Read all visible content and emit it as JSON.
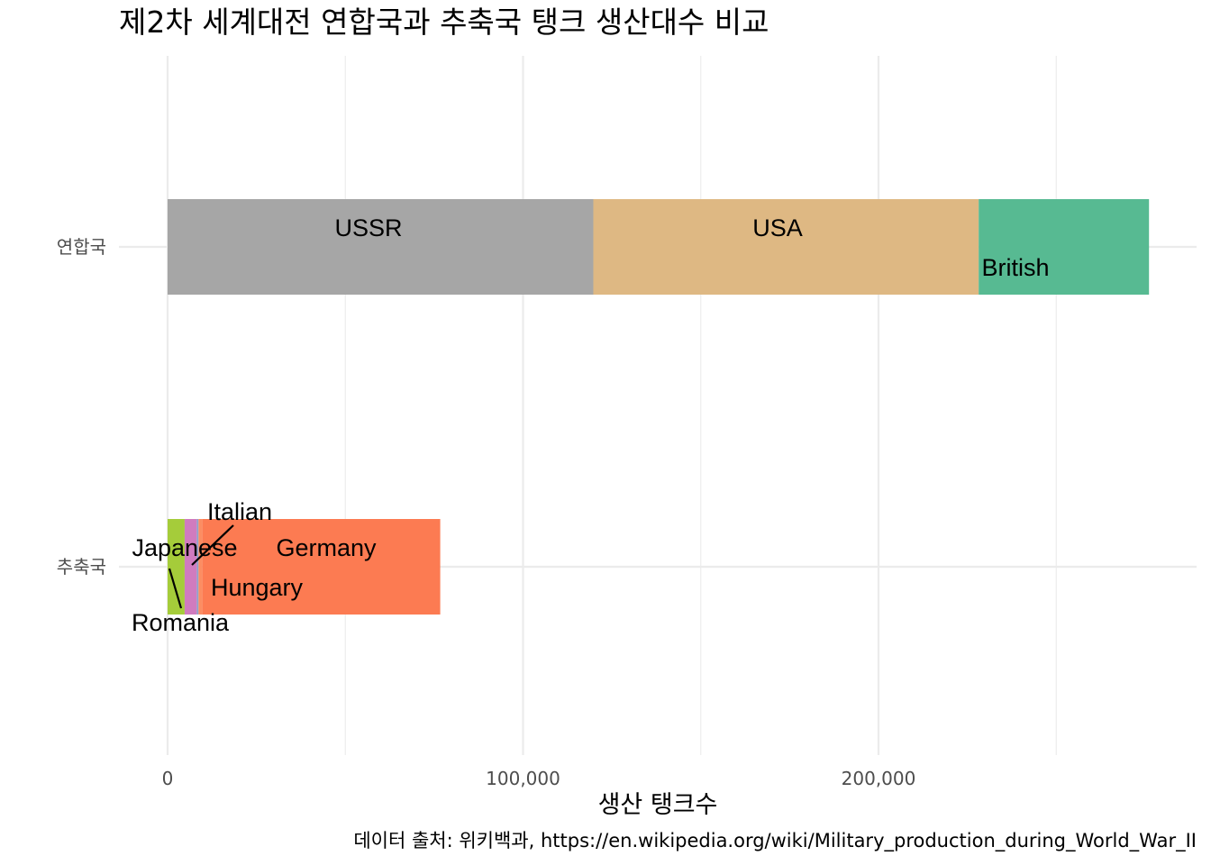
{
  "chart_data": {
    "type": "bar",
    "orientation": "horizontal",
    "stacked": true,
    "title": "제2차 세계대전 연합국과 추축국 탱크 생산대수 비교",
    "xlabel": "생산 탱크수",
    "ylabel": "",
    "caption": "데이터 출처: 위키백과, https://en.wikipedia.org/wiki/Military_production_during_World_War_II",
    "xlim": [
      0,
      275000
    ],
    "xticks": [
      0,
      100000,
      200000
    ],
    "xtick_labels": [
      "0",
      "100,000",
      "200,000"
    ],
    "grid": true,
    "legend": "none",
    "categories": [
      "연합국",
      "추축국"
    ],
    "groups": [
      {
        "category": "연합국",
        "segments": [
          {
            "name": "USSR",
            "value": 119769,
            "color": "#A6A6A6"
          },
          {
            "name": "USA",
            "value": 108410,
            "color": "#DEB883"
          },
          {
            "name": "British",
            "value": 47915,
            "color": "#57BA92"
          }
        ]
      },
      {
        "category": "추축국",
        "segments": [
          {
            "name": "Romania",
            "value": 4800,
            "color": "#A5CC3A"
          },
          {
            "name": "Japanese",
            "value": 3400,
            "color": "#D07BBF"
          },
          {
            "name": "Italian",
            "value": 500,
            "color": "#8E9FCB"
          },
          {
            "name": "Hungary",
            "value": 1000,
            "color": "#FC8D62"
          },
          {
            "name": "Germany",
            "value": 67000,
            "color": "#FC7B52"
          }
        ]
      }
    ]
  }
}
